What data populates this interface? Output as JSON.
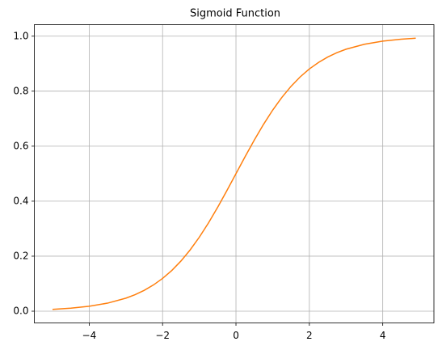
{
  "chart_data": {
    "type": "line",
    "title": "Sigmoid Function",
    "x": [
      -5,
      -4.5,
      -4,
      -3.5,
      -3,
      -2.75,
      -2.5,
      -2.25,
      -2,
      -1.75,
      -1.5,
      -1.25,
      -1,
      -0.75,
      -0.5,
      -0.25,
      0,
      0.25,
      0.5,
      0.75,
      1,
      1.25,
      1.5,
      1.75,
      2,
      2.25,
      2.5,
      2.75,
      3,
      3.5,
      4,
      4.5,
      4.9
    ],
    "values": [
      0.0067,
      0.011,
      0.018,
      0.0293,
      0.0474,
      0.0601,
      0.0759,
      0.0954,
      0.1192,
      0.148,
      0.1824,
      0.2227,
      0.2689,
      0.3208,
      0.3775,
      0.4378,
      0.5,
      0.5622,
      0.6225,
      0.6792,
      0.7311,
      0.7773,
      0.8176,
      0.852,
      0.8808,
      0.9046,
      0.9241,
      0.9399,
      0.9526,
      0.9707,
      0.982,
      0.989,
      0.9926
    ],
    "color": "#ff7f0e",
    "xlim": [
      -5.495,
      5.395
    ],
    "ylim": [
      -0.0426,
      1.0419
    ],
    "xticks": [
      {
        "value": -4,
        "label": "−4"
      },
      {
        "value": -2,
        "label": "−2"
      },
      0,
      2,
      4
    ],
    "yticks": [
      {
        "value": 0,
        "label": "0.0"
      },
      0.2,
      0.4,
      0.6,
      0.8,
      {
        "value": 1,
        "label": "1.0"
      }
    ],
    "grid": true
  }
}
